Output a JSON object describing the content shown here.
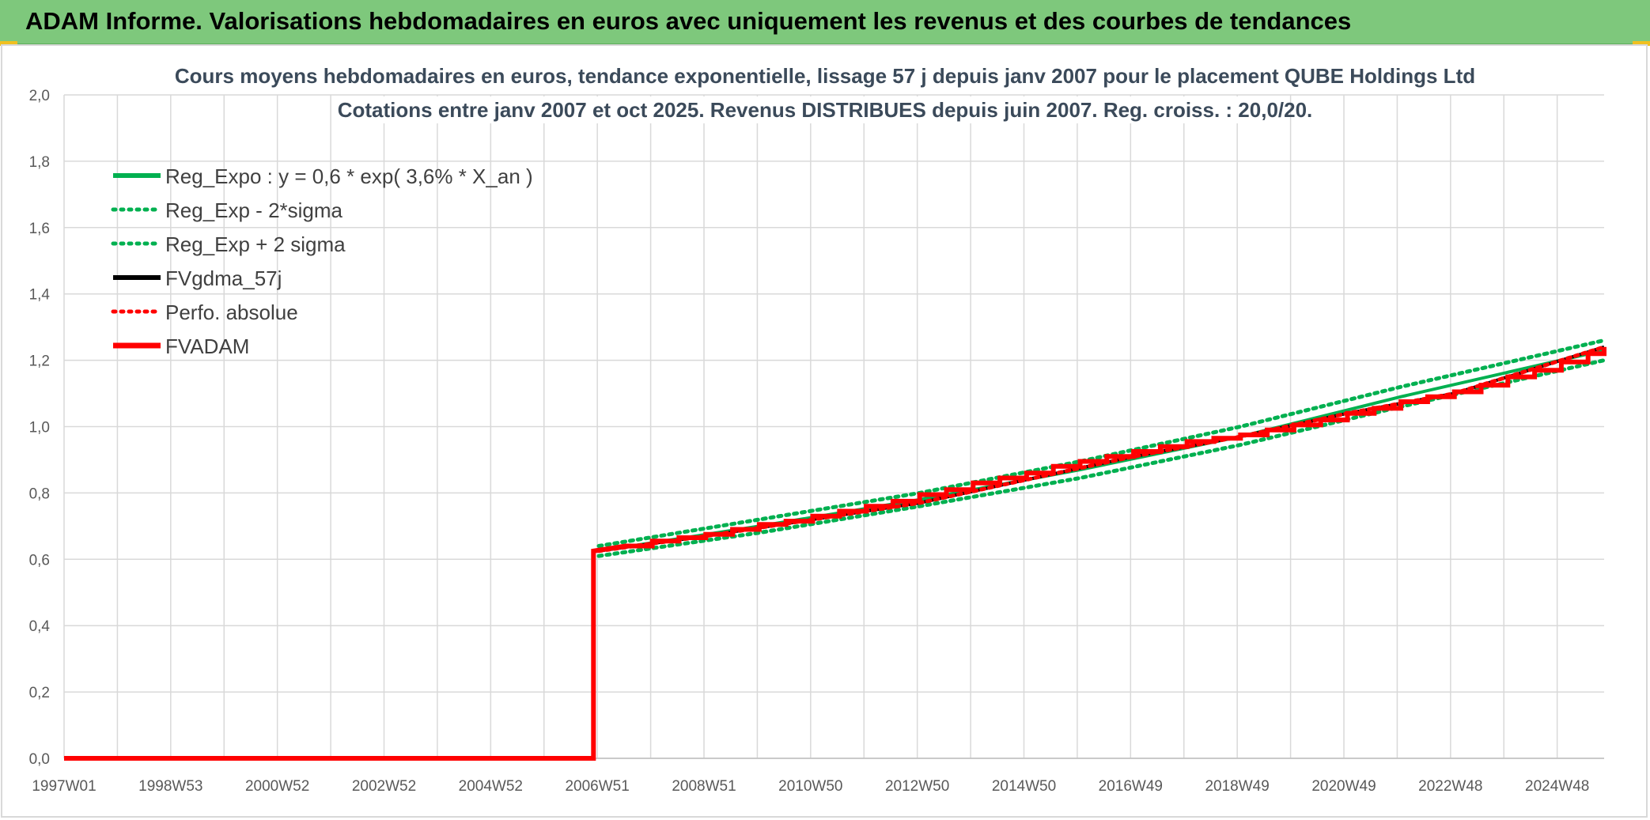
{
  "banner": {
    "title": "ADAM Informe. Valorisations hebdomadaires en euros avec uniquement les revenus et des courbes de tendances"
  },
  "chart_data": {
    "type": "line",
    "title": "Cours moyens hebdomadaires en euros, tendance exponentielle, lissage 57 j depuis janv 2007 pour le placement QUBE Holdings Ltd",
    "subtitle": "Cotations entre janv 2007 et oct 2025. Revenus DISTRIBUES depuis juin 2007. Reg. croiss. : 20,0/20.",
    "xlabel": "",
    "ylabel": "",
    "ylim": [
      0,
      2
    ],
    "xlim": [
      1997.0,
      2025.8
    ],
    "y_ticks": [
      "0,0",
      "0,2",
      "0,4",
      "0,6",
      "0,8",
      "1,0",
      "1,2",
      "1,4",
      "1,6",
      "1,8",
      "2,0"
    ],
    "x_tick_labels": [
      "1997W01",
      "1998W53",
      "2000W52",
      "2002W52",
      "2004W52",
      "2006W51",
      "2008W51",
      "2010W50",
      "2012W50",
      "2014W50",
      "2016W49",
      "2018W49",
      "2020W49",
      "2022W48",
      "2024W48"
    ],
    "grid": true,
    "legend_position": "top-left",
    "series": [
      {
        "name": "Reg_Expo : y = 0,6 * exp( 3,6% *  X_an )",
        "color": "#00b050",
        "style": "solid",
        "x": [
          2007.0,
          2010.0,
          2013.0,
          2016.0,
          2019.0,
          2022.0,
          2025.8
        ],
        "y": [
          0.625,
          0.7,
          0.78,
          0.87,
          0.97,
          1.09,
          1.23
        ]
      },
      {
        "name": "Reg_Exp - 2*sigma",
        "color": "#00b050",
        "style": "dotted",
        "x": [
          2007.0,
          2010.0,
          2013.0,
          2016.0,
          2019.0,
          2022.0,
          2025.8
        ],
        "y": [
          0.61,
          0.68,
          0.76,
          0.845,
          0.945,
          1.06,
          1.2
        ]
      },
      {
        "name": "Reg_Exp + 2 sigma",
        "color": "#00b050",
        "style": "dotted",
        "x": [
          2007.0,
          2010.0,
          2013.0,
          2016.0,
          2019.0,
          2022.0,
          2025.8
        ],
        "y": [
          0.64,
          0.72,
          0.8,
          0.895,
          1.0,
          1.12,
          1.26
        ]
      },
      {
        "name": "FVgdma_57j",
        "color": "#000000",
        "style": "solid",
        "x": [
          2007.0,
          2009.0,
          2011.0,
          2013.0,
          2015.0,
          2017.0,
          2019.0,
          2021.0,
          2023.0,
          2025.8
        ],
        "y": [
          0.625,
          0.67,
          0.72,
          0.77,
          0.84,
          0.91,
          0.97,
          1.04,
          1.1,
          1.24
        ]
      },
      {
        "name": "Perfo. absolue",
        "color": "#ff0000",
        "style": "dotted",
        "x": [
          2007.0,
          2009.0,
          2011.0,
          2013.0,
          2015.0,
          2017.0,
          2019.0,
          2021.0,
          2023.0,
          2025.8
        ],
        "y": [
          0.625,
          0.67,
          0.72,
          0.77,
          0.84,
          0.91,
          0.97,
          1.04,
          1.1,
          1.24
        ]
      },
      {
        "name": "FVADAM",
        "color": "#ff0000",
        "style": "thick",
        "x": [
          1997.0,
          2006.9,
          2006.9,
          2007.5,
          2008.0,
          2008.5,
          2009.0,
          2009.5,
          2010.0,
          2010.5,
          2011.0,
          2011.5,
          2012.0,
          2012.5,
          2013.0,
          2013.5,
          2014.0,
          2014.5,
          2015.0,
          2015.5,
          2016.0,
          2016.5,
          2017.0,
          2017.5,
          2018.0,
          2018.5,
          2019.0,
          2019.5,
          2020.0,
          2020.5,
          2021.0,
          2021.5,
          2022.0,
          2022.5,
          2023.0,
          2023.5,
          2024.0,
          2024.5,
          2025.0,
          2025.5,
          2025.8
        ],
        "y": [
          0.0,
          0.0,
          0.625,
          0.64,
          0.655,
          0.665,
          0.675,
          0.69,
          0.705,
          0.715,
          0.73,
          0.745,
          0.76,
          0.775,
          0.795,
          0.81,
          0.83,
          0.845,
          0.86,
          0.88,
          0.895,
          0.91,
          0.925,
          0.94,
          0.955,
          0.965,
          0.975,
          0.99,
          1.005,
          1.02,
          1.04,
          1.055,
          1.075,
          1.09,
          1.105,
          1.125,
          1.15,
          1.17,
          1.195,
          1.22,
          1.24
        ]
      }
    ]
  }
}
